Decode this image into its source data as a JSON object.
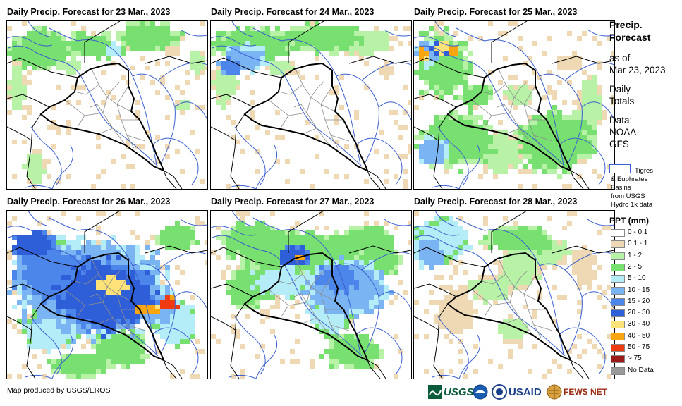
{
  "panels": [
    {
      "title": "Daily Precip. Forecast for 23 Mar., 2023",
      "day": 23
    },
    {
      "title": "Daily Precip. Forecast for 24 Mar., 2023",
      "day": 24
    },
    {
      "title": "Daily Precip. Forecast for 25 Mar., 2023",
      "day": 25
    },
    {
      "title": "Daily Precip. Forecast for 26 Mar., 2023",
      "day": 26
    },
    {
      "title": "Daily Precip. Forecast for 27 Mar., 2023",
      "day": 27
    },
    {
      "title": "Daily Precip. Forecast for 28 Mar., 2023",
      "day": 28
    }
  ],
  "side": {
    "heading1": "Precip.",
    "heading2": "Forecast",
    "asof1": "as of",
    "asof2": "Mar 23, 2023",
    "totals1": "Daily",
    "totals2": "Totals",
    "data1": "Data:",
    "data2": "NOAA-",
    "data3": "GFS",
    "basin1": "Tigres",
    "basin2": "& Euphrates",
    "basin3": "Basins",
    "basin4": "from USGS",
    "basin5": "Hydro 1k data"
  },
  "legend": {
    "title": "PPT (mm)",
    "items": [
      {
        "label": "0 - 0.1",
        "color": "#ffffff"
      },
      {
        "label": "0.1 - 1",
        "color": "#efd9b4"
      },
      {
        "label": "1 - 2",
        "color": "#b8f2a6"
      },
      {
        "label": "2 - 5",
        "color": "#78e070"
      },
      {
        "label": "5 - 10",
        "color": "#b4ecf8"
      },
      {
        "label": "10 - 15",
        "color": "#7ab4f2"
      },
      {
        "label": "15 - 20",
        "color": "#4c86ea"
      },
      {
        "label": "20 - 30",
        "color": "#2f5fd8"
      },
      {
        "label": "30 - 40",
        "color": "#fde27a"
      },
      {
        "label": "40 - 50",
        "color": "#f8a512"
      },
      {
        "label": "50 - 75",
        "color": "#ef3a12"
      },
      {
        "label": "> 75",
        "color": "#9a1a1a"
      },
      {
        "label": "No Data",
        "color": "#9a9a9a"
      }
    ]
  },
  "footer": {
    "credit": "Map produced by USGS/EROS",
    "logos": [
      "USGS",
      "NOAA",
      "USAID",
      "FEWS NET"
    ]
  }
}
